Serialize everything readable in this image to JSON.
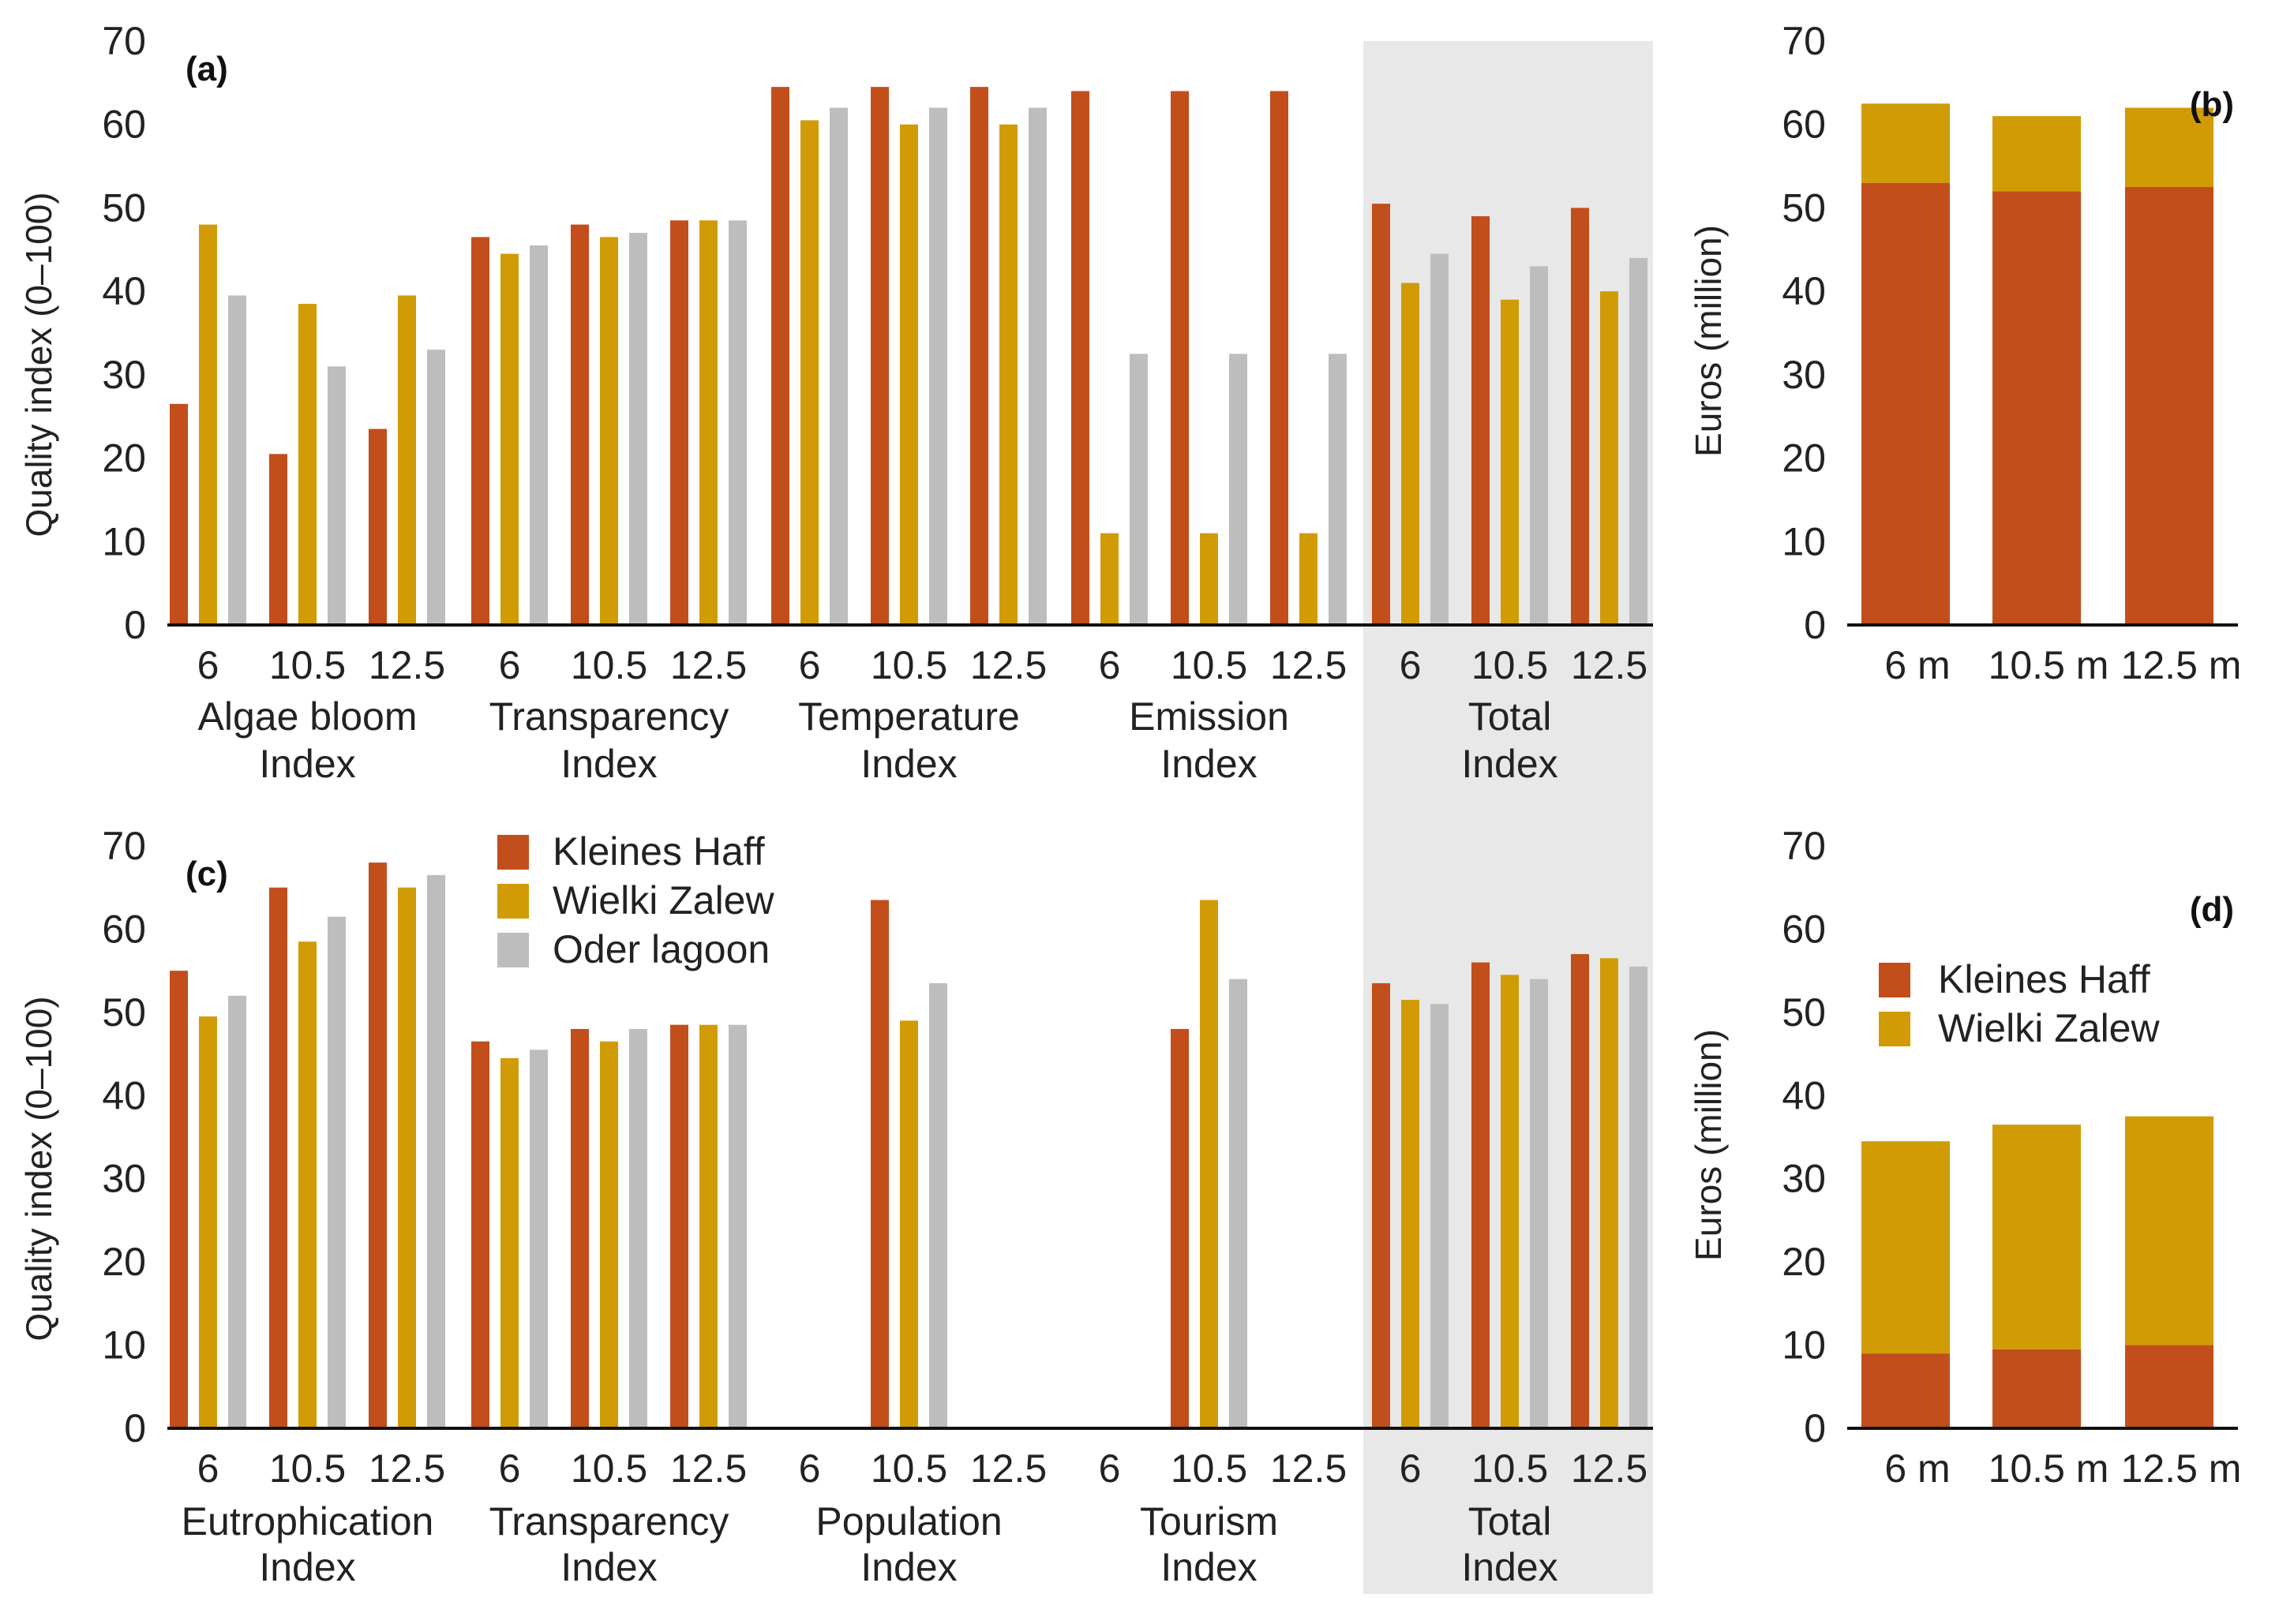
{
  "colors": {
    "kleines_haff": "#c24e1b",
    "wielki_zalew": "#d19b06",
    "oder_lagoon": "#bdbdbd",
    "total_shade": "#e7e8e7",
    "axis": "#111111"
  },
  "legend_top": [
    "Kleines Haff",
    "Wielki Zalew",
    "Oder lagoon"
  ],
  "legend_bottom": [
    "Kleines Haff",
    "Wielki Zalew"
  ],
  "chart_data": [
    {
      "panel": "(a)",
      "type": "bar",
      "ylabel": "Quality index (0–100)",
      "ylim": [
        0,
        70
      ],
      "yticks": [
        "0",
        "10",
        "20",
        "30",
        "40",
        "50",
        "60",
        "70"
      ],
      "series_names": [
        "Kleines Haff",
        "Wielki Zalew",
        "Oder lagoon"
      ],
      "groups": [
        {
          "label": [
            "Algae bloom",
            "Index"
          ],
          "shaded": false,
          "bars": [
            {
              "tick": "6",
              "values": [
                26.5,
                48,
                39.5
              ]
            },
            {
              "tick": "10.5",
              "values": [
                20.5,
                38.5,
                31
              ]
            },
            {
              "tick": "12.5",
              "values": [
                23.5,
                39.5,
                33
              ]
            }
          ]
        },
        {
          "label": [
            "Transparency",
            "Index"
          ],
          "shaded": false,
          "bars": [
            {
              "tick": "6",
              "values": [
                46.5,
                44.5,
                45.5
              ]
            },
            {
              "tick": "10.5",
              "values": [
                48,
                46.5,
                47
              ]
            },
            {
              "tick": "12.5",
              "values": [
                48.5,
                48.5,
                48.5
              ]
            }
          ]
        },
        {
          "label": [
            "Temperature",
            "Index"
          ],
          "shaded": false,
          "bars": [
            {
              "tick": "6",
              "values": [
                64.5,
                60.5,
                62
              ]
            },
            {
              "tick": "10.5",
              "values": [
                64.5,
                60,
                62
              ]
            },
            {
              "tick": "12.5",
              "values": [
                64.5,
                60,
                62
              ]
            }
          ]
        },
        {
          "label": [
            "Emission",
            "Index"
          ],
          "shaded": false,
          "bars": [
            {
              "tick": "6",
              "values": [
                64,
                11,
                32.5
              ]
            },
            {
              "tick": "10.5",
              "values": [
                64,
                11,
                32.5
              ]
            },
            {
              "tick": "12.5",
              "values": [
                64,
                11,
                32.5
              ]
            }
          ]
        },
        {
          "label": [
            "Total",
            "Index"
          ],
          "shaded": true,
          "bars": [
            {
              "tick": "6",
              "values": [
                50.5,
                41,
                44.5
              ]
            },
            {
              "tick": "10.5",
              "values": [
                49,
                39,
                43
              ]
            },
            {
              "tick": "12.5",
              "values": [
                50,
                40,
                44
              ]
            }
          ]
        }
      ]
    },
    {
      "panel": "(b)",
      "type": "bar",
      "stacked": true,
      "ylabel": "Euros (million)",
      "ylim": [
        0,
        70
      ],
      "yticks": [
        "0",
        "10",
        "20",
        "30",
        "40",
        "50",
        "60",
        "70"
      ],
      "categories": [
        "6 m",
        "10.5 m",
        "12.5 m"
      ],
      "series": [
        {
          "name": "Kleines Haff",
          "values": [
            53,
            52,
            52.5
          ]
        },
        {
          "name": "Wielki Zalew",
          "values": [
            9.5,
            9,
            9.5
          ]
        }
      ]
    },
    {
      "panel": "(c)",
      "type": "bar",
      "ylabel": "Quality index (0–100)",
      "ylim": [
        0,
        70
      ],
      "yticks": [
        "0",
        "10",
        "20",
        "30",
        "40",
        "50",
        "60",
        "70"
      ],
      "series_names": [
        "Kleines Haff",
        "Wielki Zalew",
        "Oder lagoon"
      ],
      "groups": [
        {
          "label": [
            "Eutrophication",
            "Index"
          ],
          "shaded": false,
          "bars": [
            {
              "tick": "6",
              "values": [
                55,
                49.5,
                52
              ]
            },
            {
              "tick": "10.5",
              "values": [
                65,
                58.5,
                61.5
              ]
            },
            {
              "tick": "12.5",
              "values": [
                68,
                65,
                66.5
              ]
            }
          ]
        },
        {
          "label": [
            "Transparency",
            "Index"
          ],
          "shaded": false,
          "bars": [
            {
              "tick": "6",
              "values": [
                46.5,
                44.5,
                45.5
              ]
            },
            {
              "tick": "10.5",
              "values": [
                48,
                46.5,
                48
              ]
            },
            {
              "tick": "12.5",
              "values": [
                48.5,
                48.5,
                48.5
              ]
            }
          ]
        },
        {
          "label": [
            "Population",
            "Index"
          ],
          "shaded": false,
          "bars": [
            {
              "tick": "6",
              "values": [
                null,
                null,
                null
              ]
            },
            {
              "tick": "10.5",
              "values": [
                63.5,
                49,
                53.5
              ]
            },
            {
              "tick": "12.5",
              "values": [
                null,
                null,
                null
              ]
            }
          ]
        },
        {
          "label": [
            "Tourism",
            "Index"
          ],
          "shaded": false,
          "bars": [
            {
              "tick": "6",
              "values": [
                null,
                null,
                null
              ]
            },
            {
              "tick": "10.5",
              "values": [
                48,
                63.5,
                54
              ]
            },
            {
              "tick": "12.5",
              "values": [
                null,
                null,
                null
              ]
            }
          ]
        },
        {
          "label": [
            "Total",
            "Index"
          ],
          "shaded": true,
          "bars": [
            {
              "tick": "6",
              "values": [
                53.5,
                51.5,
                51
              ]
            },
            {
              "tick": "10.5",
              "values": [
                56,
                54.5,
                54
              ]
            },
            {
              "tick": "12.5",
              "values": [
                57,
                56.5,
                55.5
              ]
            }
          ]
        }
      ]
    },
    {
      "panel": "(d)",
      "type": "bar",
      "stacked": true,
      "ylabel": "Euros (million)",
      "ylim": [
        0,
        70
      ],
      "yticks": [
        "0",
        "10",
        "20",
        "30",
        "40",
        "50",
        "60",
        "70"
      ],
      "categories": [
        "6 m",
        "10.5 m",
        "12.5 m"
      ],
      "series": [
        {
          "name": "Kleines Haff",
          "values": [
            9,
            9.5,
            10
          ]
        },
        {
          "name": "Wielki Zalew",
          "values": [
            25.5,
            27,
            27.5
          ]
        }
      ]
    }
  ]
}
